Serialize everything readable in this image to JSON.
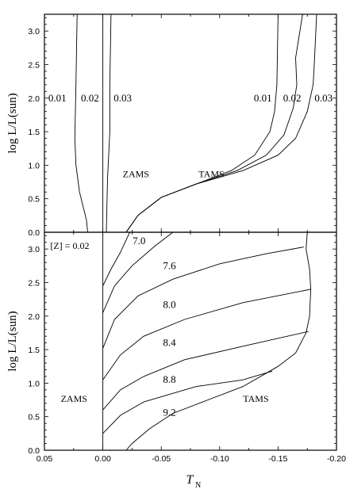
{
  "chart_data": [
    {
      "type": "line",
      "panel": "top",
      "xlabel": "T",
      "xlabel_sub": "N",
      "ylabel": "log L/L(sun)",
      "xlim": [
        0.05,
        -0.2
      ],
      "ylim": [
        0.0,
        3.25
      ],
      "y_ticks": [
        "0.0",
        "0.5",
        "1.0",
        "1.5",
        "2.0",
        "2.5",
        "3.0"
      ],
      "grid": false,
      "annotations": [
        {
          "text": "ZAMS",
          "x": -0.017,
          "y": 0.87
        },
        {
          "text": "TAMS",
          "x": -0.082,
          "y": 0.87
        }
      ],
      "series": [
        {
          "label": "0.01",
          "label_pos": [
            0.039,
            2.0
          ],
          "points": [
            [
              0.013,
              0.0
            ],
            [
              0.014,
              0.18
            ],
            [
              0.02,
              0.6
            ],
            [
              0.023,
              1.0
            ],
            [
              0.024,
              1.4
            ],
            [
              0.023,
              2.2
            ],
            [
              0.022,
              3.25
            ]
          ]
        },
        {
          "label": "0.02",
          "label_pos": [
            0.011,
            2.0
          ],
          "points": [
            [
              0.0,
              0.0
            ],
            [
              0.0,
              3.25
            ]
          ]
        },
        {
          "label": "0.03",
          "label_pos": [
            -0.017,
            2.0
          ],
          "points": [
            [
              -0.003,
              0.0
            ],
            [
              -0.004,
              0.8
            ],
            [
              -0.006,
              1.5
            ],
            [
              -0.006,
              2.2
            ],
            [
              -0.007,
              3.25
            ]
          ]
        },
        {
          "label": "0.01",
          "label_pos": [
            -0.137,
            2.0
          ],
          "points": [
            [
              -0.02,
              0.0
            ],
            [
              -0.03,
              0.25
            ],
            [
              -0.05,
              0.52
            ],
            [
              -0.08,
              0.72
            ],
            [
              -0.11,
              0.92
            ],
            [
              -0.13,
              1.15
            ],
            [
              -0.143,
              1.5
            ],
            [
              -0.147,
              1.8
            ],
            [
              -0.149,
              2.2
            ],
            [
              -0.15,
              3.25
            ]
          ]
        },
        {
          "label": "0.02",
          "label_pos": [
            -0.162,
            2.0
          ],
          "points": [
            [
              -0.02,
              0.0
            ],
            [
              -0.03,
              0.25
            ],
            [
              -0.05,
              0.52
            ],
            [
              -0.08,
              0.72
            ],
            [
              -0.115,
              0.92
            ],
            [
              -0.14,
              1.15
            ],
            [
              -0.155,
              1.45
            ],
            [
              -0.163,
              1.85
            ],
            [
              -0.166,
              2.2
            ],
            [
              -0.165,
              2.6
            ],
            [
              -0.171,
              3.25
            ]
          ]
        },
        {
          "label": "0.03",
          "label_pos": [
            -0.189,
            2.0
          ],
          "points": [
            [
              -0.02,
              0.0
            ],
            [
              -0.03,
              0.25
            ],
            [
              -0.05,
              0.52
            ],
            [
              -0.08,
              0.72
            ],
            [
              -0.12,
              0.92
            ],
            [
              -0.15,
              1.15
            ],
            [
              -0.165,
              1.4
            ],
            [
              -0.175,
              1.8
            ],
            [
              -0.18,
              2.2
            ],
            [
              -0.181,
              2.5
            ],
            [
              -0.183,
              3.25
            ]
          ]
        }
      ]
    },
    {
      "type": "line",
      "panel": "bottom",
      "xlabel": "T",
      "xlabel_sub": "N",
      "ylabel": "log L/L(sun)",
      "xlim": [
        0.05,
        -0.2
      ],
      "ylim": [
        0.0,
        3.25
      ],
      "x_ticks": [
        "0.05",
        "0.00",
        "-0.05",
        "-0.10",
        "-0.15",
        "-0.20"
      ],
      "y_ticks": [
        "0.0",
        "0.5",
        "1.0",
        "1.5",
        "2.0",
        "2.5",
        "3.0"
      ],
      "grid": false,
      "annotations": [
        {
          "text": "[Z] = 0.02",
          "x": 0.045,
          "y": 3.05
        },
        {
          "text": "ZAMS",
          "x": 0.036,
          "y": 0.77
        },
        {
          "text": "TAMS",
          "x": -0.12,
          "y": 0.77
        }
      ],
      "series": [
        {
          "label": "ZAMS",
          "points": [
            [
              0.0,
              0.0
            ],
            [
              0.0,
              3.25
            ]
          ]
        },
        {
          "label": "TAMS",
          "points": [
            [
              -0.175,
              3.25
            ],
            [
              -0.174,
              3.0
            ],
            [
              -0.177,
              2.7
            ],
            [
              -0.178,
              2.4
            ],
            [
              -0.177,
              2.0
            ],
            [
              -0.174,
              1.75
            ],
            [
              -0.165,
              1.45
            ],
            [
              -0.15,
              1.25
            ],
            [
              -0.14,
              1.15
            ],
            [
              -0.12,
              0.95
            ],
            [
              -0.09,
              0.75
            ],
            [
              -0.06,
              0.55
            ],
            [
              -0.04,
              0.32
            ],
            [
              -0.025,
              0.1
            ],
            [
              -0.02,
              0.0
            ]
          ]
        },
        {
          "label": "7.0",
          "label_pos": [
            -0.031,
            3.12
          ],
          "points": [
            [
              0.0,
              2.45
            ],
            [
              -0.007,
              2.7
            ],
            [
              -0.015,
              2.95
            ],
            [
              -0.023,
              3.25
            ]
          ]
        },
        {
          "label": "7.6",
          "label_pos": [
            -0.057,
            2.75
          ],
          "points": [
            [
              0.0,
              2.05
            ],
            [
              -0.01,
              2.45
            ],
            [
              -0.025,
              2.75
            ],
            [
              -0.045,
              3.05
            ],
            [
              -0.06,
              3.25
            ]
          ]
        },
        {
          "label": "8.0",
          "label_pos": [
            -0.057,
            2.17
          ],
          "points": [
            [
              0.0,
              1.52
            ],
            [
              -0.01,
              1.95
            ],
            [
              -0.03,
              2.3
            ],
            [
              -0.06,
              2.55
            ],
            [
              -0.1,
              2.78
            ],
            [
              -0.14,
              2.93
            ],
            [
              -0.172,
              3.03
            ]
          ]
        },
        {
          "label": "8.4",
          "label_pos": [
            -0.057,
            1.6
          ],
          "points": [
            [
              0.0,
              1.05
            ],
            [
              -0.015,
              1.42
            ],
            [
              -0.035,
              1.7
            ],
            [
              -0.07,
              1.95
            ],
            [
              -0.12,
              2.2
            ],
            [
              -0.178,
              2.4
            ]
          ]
        },
        {
          "label": "8.8",
          "label_pos": [
            -0.057,
            1.05
          ],
          "points": [
            [
              0.0,
              0.6
            ],
            [
              -0.015,
              0.9
            ],
            [
              -0.035,
              1.1
            ],
            [
              -0.07,
              1.35
            ],
            [
              -0.12,
              1.55
            ],
            [
              -0.176,
              1.77
            ]
          ]
        },
        {
          "label": "9.2",
          "label_pos": [
            -0.057,
            0.56
          ],
          "points": [
            [
              0.0,
              0.25
            ],
            [
              -0.015,
              0.52
            ],
            [
              -0.035,
              0.72
            ],
            [
              -0.08,
              0.95
            ],
            [
              -0.12,
              1.05
            ],
            [
              -0.145,
              1.18
            ]
          ]
        }
      ]
    }
  ]
}
